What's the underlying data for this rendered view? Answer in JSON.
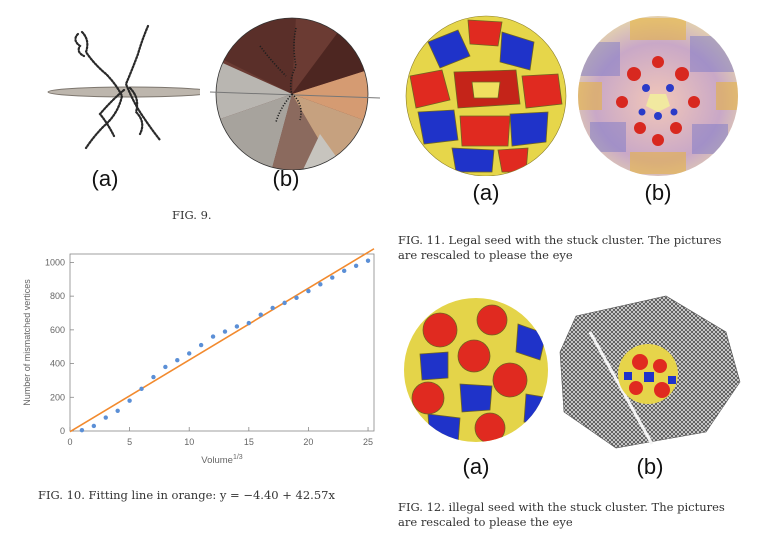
{
  "fig9": {
    "label_a": "(a)",
    "label_b": "(b)",
    "caption": "FIG. 9."
  },
  "fig10": {
    "caption": "FIG. 10. Fitting line in orange: y = −4.40 + 42.57x"
  },
  "fig11": {
    "label_a": "(a)",
    "label_b": "(b)",
    "caption_line1": "FIG. 11. Legal seed with the stuck cluster. The pictures",
    "caption_line2": "are rescaled to please the eye"
  },
  "fig12": {
    "label_a": "(a)",
    "label_b": "(b)",
    "caption_line1": "FIG. 12. illegal seed with the stuck cluster. The pictures",
    "caption_line2": "are rescaled to please the eye"
  },
  "chart_data": {
    "type": "scatter",
    "xlabel": "Volume",
    "xlabel_sup": "1/3",
    "ylabel": "Number of mismatched vertices",
    "xlim": [
      0,
      25.5
    ],
    "ylim": [
      0,
      1050
    ],
    "xticks": [
      0,
      5,
      10,
      15,
      20,
      25
    ],
    "yticks": [
      0,
      200,
      400,
      600,
      800,
      1000
    ],
    "grid": false,
    "series": [
      {
        "points": [
          [
            1,
            5
          ],
          [
            2,
            30
          ],
          [
            3,
            80
          ],
          [
            4,
            120
          ],
          [
            5,
            180
          ],
          [
            6,
            250
          ],
          [
            7,
            320
          ],
          [
            8,
            380
          ],
          [
            9,
            420
          ],
          [
            10,
            460
          ],
          [
            11,
            510
          ],
          [
            12,
            560
          ],
          [
            13,
            590
          ],
          [
            14,
            620
          ],
          [
            15,
            640
          ],
          [
            16,
            690
          ],
          [
            17,
            730
          ],
          [
            18,
            760
          ],
          [
            19,
            790
          ],
          [
            20,
            830
          ],
          [
            21,
            870
          ],
          [
            22,
            910
          ],
          [
            23,
            950
          ],
          [
            24,
            980
          ],
          [
            25,
            1010
          ]
        ],
        "color": "#5b8fd6"
      }
    ],
    "fit_line": {
      "intercept": -4.4,
      "slope": 42.57,
      "color": "#f28a2e"
    }
  }
}
